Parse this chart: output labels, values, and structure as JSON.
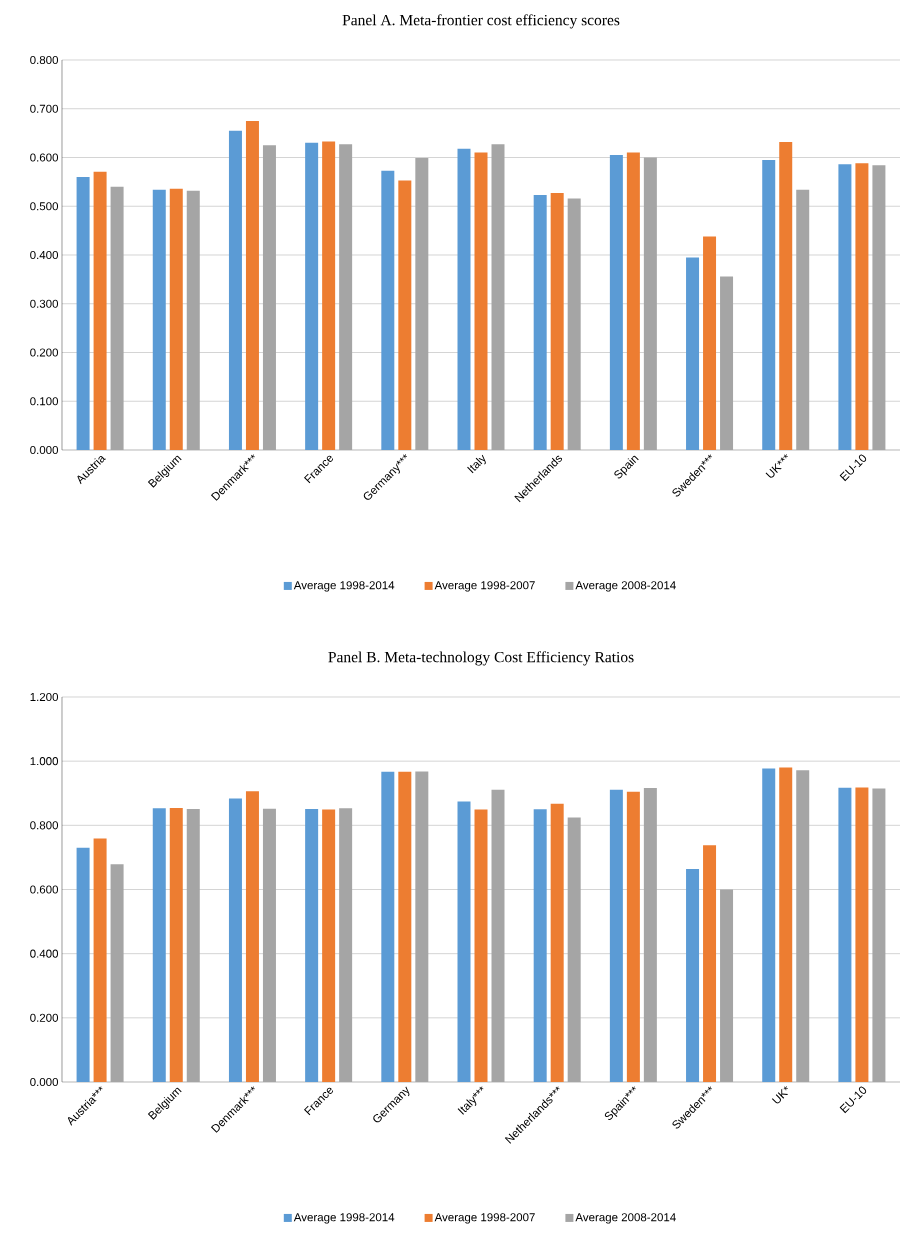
{
  "chart_data": [
    {
      "type": "bar",
      "title": "Panel A. Meta-frontier cost efficiency scores",
      "categories": [
        "Austria",
        "Belgium",
        "Denmark***",
        "France",
        "Germany***",
        "Italy",
        "Netherlands",
        "Spain",
        "Sweden***",
        "UK***",
        "EU-10"
      ],
      "series": [
        {
          "name": "Average 1998-2014",
          "color": "#5b9bd5",
          "values": [
            0.56,
            0.534,
            0.655,
            0.63,
            0.573,
            0.618,
            0.523,
            0.605,
            0.395,
            0.595,
            0.586
          ]
        },
        {
          "name": "Average 1998-2007",
          "color": "#ed7d31",
          "values": [
            0.571,
            0.536,
            0.675,
            0.633,
            0.553,
            0.61,
            0.527,
            0.61,
            0.438,
            0.632,
            0.588
          ]
        },
        {
          "name": "Average 2008-2014",
          "color": "#a5a5a5",
          "values": [
            0.54,
            0.532,
            0.625,
            0.627,
            0.599,
            0.627,
            0.516,
            0.6,
            0.356,
            0.534,
            0.584
          ]
        }
      ],
      "ylim": [
        0,
        0.8
      ],
      "yticks": [
        {
          "value": 0,
          "label": "0.000"
        },
        {
          "value": 0.1,
          "label": "0.100"
        },
        {
          "value": 0.2,
          "label": "0.200"
        },
        {
          "value": 0.3,
          "label": "0.300"
        },
        {
          "value": 0.4,
          "label": "0.400"
        },
        {
          "value": 0.5,
          "label": "0.500"
        },
        {
          "value": 0.6,
          "label": "0.600"
        },
        {
          "value": 0.7,
          "label": "0.700"
        },
        {
          "value": 0.8,
          "label": "0.800"
        }
      ],
      "grid": "y",
      "legend": "bottom"
    },
    {
      "type": "bar",
      "title": "Panel B. Meta-technology Cost Efficiency Ratios",
      "categories": [
        "Austria***",
        "Belgium",
        "Denmark***",
        "France",
        "Germany",
        "Italy***",
        "Netherlands***",
        "Spain***",
        "Sweden***",
        "UK*",
        "EU-10"
      ],
      "series": [
        {
          "name": "Average 1998-2014",
          "color": "#5b9bd5",
          "values": [
            0.73,
            0.853,
            0.884,
            0.851,
            0.967,
            0.874,
            0.85,
            0.911,
            0.664,
            0.977,
            0.917
          ]
        },
        {
          "name": "Average 1998-2007",
          "color": "#ed7d31",
          "values": [
            0.759,
            0.854,
            0.906,
            0.849,
            0.967,
            0.849,
            0.867,
            0.905,
            0.738,
            0.98,
            0.918
          ]
        },
        {
          "name": "Average 2008-2014",
          "color": "#a5a5a5",
          "values": [
            0.679,
            0.851,
            0.852,
            0.853,
            0.968,
            0.911,
            0.824,
            0.916,
            0.6,
            0.972,
            0.915
          ]
        }
      ],
      "ylim": [
        0,
        1.2
      ],
      "yticks": [
        {
          "value": 0,
          "label": "0.000"
        },
        {
          "value": 0.2,
          "label": "0.200"
        },
        {
          "value": 0.4,
          "label": "0.400"
        },
        {
          "value": 0.6,
          "label": "0.600"
        },
        {
          "value": 0.8,
          "label": "0.800"
        },
        {
          "value": 1.0,
          "label": "1.000"
        },
        {
          "value": 1.2,
          "label": "1.200"
        }
      ],
      "grid": "y",
      "legend": "bottom"
    }
  ]
}
